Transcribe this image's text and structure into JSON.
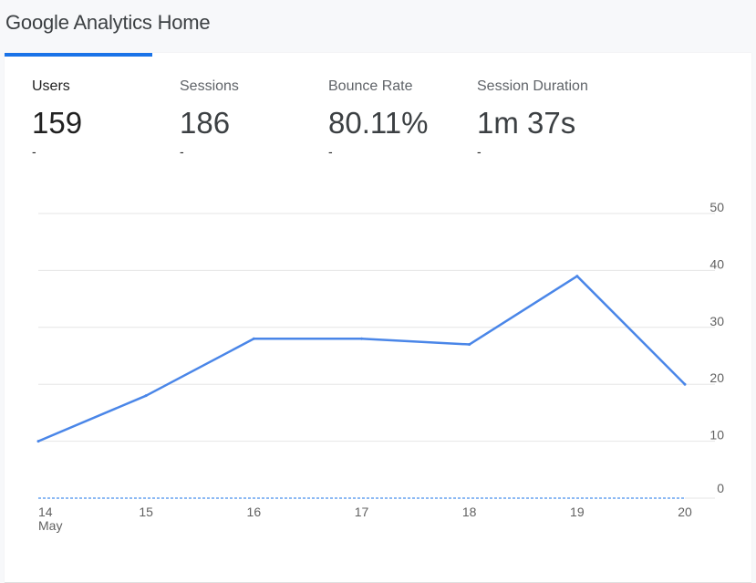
{
  "page": {
    "title": "Google Analytics Home"
  },
  "metrics": [
    {
      "label": "Users",
      "value": "159",
      "delta": "-",
      "active": true
    },
    {
      "label": "Sessions",
      "value": "186",
      "delta": "-"
    },
    {
      "label": "Bounce Rate",
      "value": "80.11%",
      "delta": "-"
    },
    {
      "label": "Session Duration",
      "value": "1m 37s",
      "delta": "-"
    }
  ],
  "colors": {
    "accent": "#1a73e8",
    "line": "#4a86e8",
    "grid": "#e6e6e6"
  },
  "chart_data": {
    "type": "line",
    "x": [
      "14",
      "15",
      "16",
      "17",
      "18",
      "19",
      "20"
    ],
    "x_sublabel_first": "May",
    "series": [
      {
        "values": [
          10,
          18,
          28,
          28,
          27,
          39,
          20
        ]
      }
    ],
    "y_ticks": [
      50,
      40,
      30,
      20,
      10,
      0
    ],
    "ylim": [
      0,
      50
    ],
    "grid": true,
    "y_axis_side": "right",
    "baseline": "dashed"
  }
}
